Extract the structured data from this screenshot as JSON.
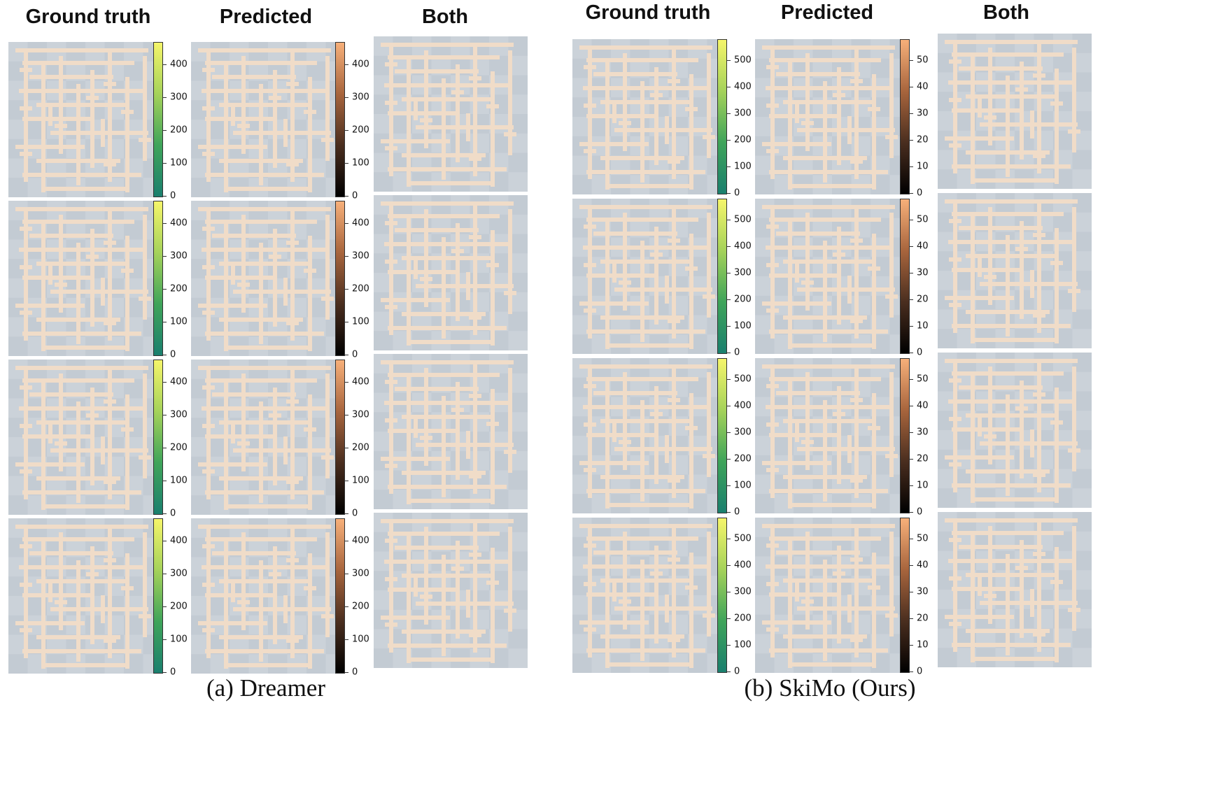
{
  "groups": [
    {
      "caption": "(a) Dreamer",
      "headers": [
        "Ground truth",
        "Predicted",
        "Both"
      ],
      "colorbars": {
        "ground_truth": {
          "colors": [
            "#1a7f6e",
            "#3fa45a",
            "#a5d25a",
            "#f5f56a"
          ],
          "ticks": [
            "0",
            "100",
            "200",
            "300",
            "400"
          ]
        },
        "predicted": {
          "colors": [
            "#000000",
            "#4a2e1f",
            "#a8653d",
            "#f7b07a"
          ],
          "ticks": [
            "0",
            "100",
            "200",
            "300",
            "400"
          ]
        }
      },
      "rows": 4
    },
    {
      "caption": "(b) SkiMo (Ours)",
      "headers": [
        "Ground truth",
        "Predicted",
        "Both"
      ],
      "colorbars": {
        "ground_truth": {
          "colors": [
            "#1a7f6e",
            "#3fa45a",
            "#a5d25a",
            "#f5f56a"
          ],
          "ticks": [
            "0",
            "100",
            "200",
            "300",
            "400",
            "500"
          ]
        },
        "predicted": {
          "colors": [
            "#000000",
            "#4a2e1f",
            "#a8653d",
            "#f7b07a"
          ],
          "ticks": [
            "0",
            "10",
            "20",
            "30",
            "40",
            "50"
          ]
        }
      },
      "rows": 4
    }
  ],
  "colors": {
    "maze_background": "#c3cbd3",
    "maze_checker": "#cbd2d9",
    "maze_wall": "#f0dcc8"
  }
}
